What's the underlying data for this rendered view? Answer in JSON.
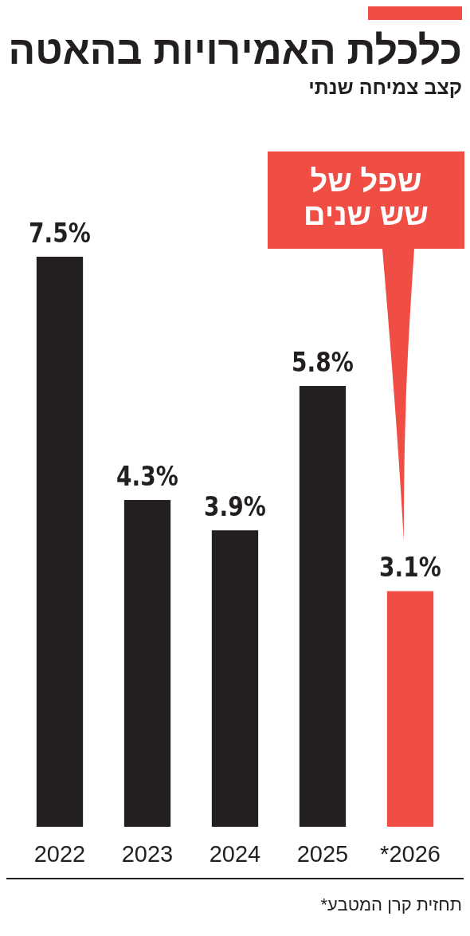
{
  "chart_data": {
    "type": "bar",
    "title": "כלכלת האמירויות בהאטה",
    "subtitle": "קצב צמיחה שנתי",
    "categories": [
      "2022",
      "2023",
      "2024",
      "2025",
      "*2026"
    ],
    "values": [
      7.5,
      4.3,
      3.9,
      5.8,
      3.1
    ],
    "colors": [
      "#231f20",
      "#231f20",
      "#231f20",
      "#231f20",
      "#f04e45"
    ],
    "value_labels": [
      "7.5%",
      "4.3%",
      "3.9%",
      "5.8%",
      "3.1%"
    ],
    "annotations": [
      "שפל של שש שנים",
      "תחזית קרן המטבע*"
    ]
  }
}
